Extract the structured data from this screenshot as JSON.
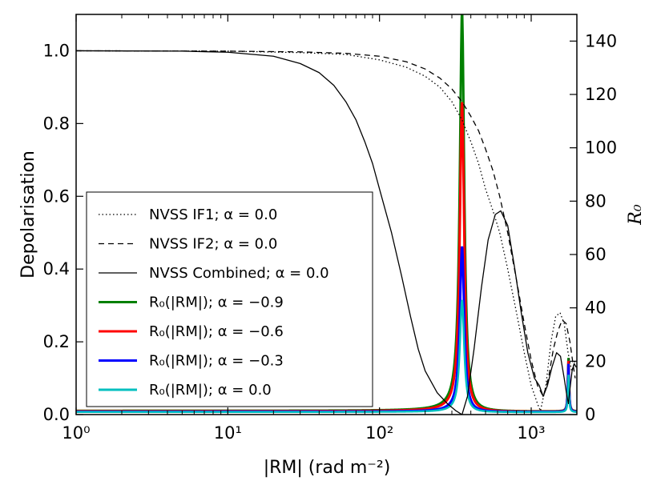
{
  "chart_data": {
    "type": "line",
    "xscale": "log",
    "xlim": [
      1,
      2000
    ],
    "ylim": [
      0,
      1.1
    ],
    "y2lim": [
      0,
      150
    ],
    "xlabel": "|RM| (rad m⁻²)",
    "ylabel": "Depolarisation",
    "y2label": "R₀",
    "x_ticks": [
      "10⁰",
      "10¹",
      "10²",
      "10³"
    ],
    "y_ticks": [
      "0.0",
      "0.2",
      "0.4",
      "0.6",
      "0.8",
      "1.0"
    ],
    "y2_ticks": [
      "0",
      "20",
      "40",
      "60",
      "80",
      "100",
      "120",
      "140"
    ],
    "legend_location": "lower left",
    "grid": false,
    "depolarisation_series": [
      {
        "name": "NVSS IF1; α = 0.0",
        "style": "dotted",
        "color": "#000000",
        "points": [
          [
            1,
            1.0
          ],
          [
            10,
            0.999
          ],
          [
            30,
            0.995
          ],
          [
            60,
            0.99
          ],
          [
            100,
            0.975
          ],
          [
            150,
            0.955
          ],
          [
            200,
            0.93
          ],
          [
            250,
            0.9
          ],
          [
            300,
            0.86
          ],
          [
            350,
            0.81
          ],
          [
            400,
            0.75
          ],
          [
            450,
            0.69
          ],
          [
            500,
            0.62
          ],
          [
            560,
            0.56
          ],
          [
            620,
            0.5
          ],
          [
            700,
            0.4
          ],
          [
            800,
            0.28
          ],
          [
            900,
            0.17
          ],
          [
            1000,
            0.08
          ],
          [
            1100,
            0.03
          ],
          [
            1150,
            0.01
          ],
          [
            1250,
            0.08
          ],
          [
            1350,
            0.2
          ],
          [
            1450,
            0.27
          ],
          [
            1550,
            0.28
          ],
          [
            1650,
            0.25
          ],
          [
            1750,
            0.17
          ],
          [
            1850,
            0.12
          ],
          [
            1950,
            0.15
          ]
        ]
      },
      {
        "name": "NVSS IF2; α = 0.0",
        "style": "dashed",
        "color": "#000000",
        "points": [
          [
            1,
            1.0
          ],
          [
            10,
            0.999
          ],
          [
            30,
            0.997
          ],
          [
            60,
            0.993
          ],
          [
            100,
            0.985
          ],
          [
            150,
            0.97
          ],
          [
            200,
            0.95
          ],
          [
            250,
            0.925
          ],
          [
            300,
            0.895
          ],
          [
            350,
            0.86
          ],
          [
            400,
            0.82
          ],
          [
            450,
            0.78
          ],
          [
            500,
            0.73
          ],
          [
            560,
            0.67
          ],
          [
            620,
            0.6
          ],
          [
            700,
            0.5
          ],
          [
            800,
            0.37
          ],
          [
            900,
            0.25
          ],
          [
            1000,
            0.15
          ],
          [
            1100,
            0.08
          ],
          [
            1200,
            0.05
          ],
          [
            1300,
            0.1
          ],
          [
            1400,
            0.18
          ],
          [
            1500,
            0.23
          ],
          [
            1600,
            0.26
          ],
          [
            1700,
            0.25
          ],
          [
            1800,
            0.2
          ],
          [
            1900,
            0.13
          ],
          [
            1950,
            0.1
          ]
        ]
      },
      {
        "name": "NVSS Combined; α = 0.0",
        "style": "solid",
        "color": "#000000",
        "points": [
          [
            1,
            1.0
          ],
          [
            5,
            0.999
          ],
          [
            10,
            0.996
          ],
          [
            20,
            0.985
          ],
          [
            30,
            0.965
          ],
          [
            40,
            0.94
          ],
          [
            50,
            0.905
          ],
          [
            60,
            0.86
          ],
          [
            70,
            0.81
          ],
          [
            80,
            0.75
          ],
          [
            90,
            0.69
          ],
          [
            100,
            0.62
          ],
          [
            120,
            0.5
          ],
          [
            140,
            0.38
          ],
          [
            160,
            0.27
          ],
          [
            180,
            0.18
          ],
          [
            200,
            0.12
          ],
          [
            240,
            0.06
          ],
          [
            280,
            0.03
          ],
          [
            320,
            0.01
          ],
          [
            350,
            0.0
          ],
          [
            380,
            0.05
          ],
          [
            420,
            0.18
          ],
          [
            470,
            0.35
          ],
          [
            520,
            0.48
          ],
          [
            580,
            0.55
          ],
          [
            630,
            0.56
          ],
          [
            700,
            0.52
          ],
          [
            780,
            0.4
          ],
          [
            860,
            0.28
          ],
          [
            950,
            0.17
          ],
          [
            1050,
            0.1
          ],
          [
            1130,
            0.08
          ],
          [
            1200,
            0.05
          ],
          [
            1280,
            0.08
          ],
          [
            1370,
            0.13
          ],
          [
            1470,
            0.17
          ],
          [
            1560,
            0.16
          ],
          [
            1650,
            0.1
          ],
          [
            1720,
            0.05
          ],
          [
            1760,
            0.03
          ],
          [
            1800,
            0.07
          ],
          [
            1860,
            0.12
          ],
          [
            1920,
            0.14
          ],
          [
            1980,
            0.13
          ]
        ]
      }
    ],
    "r0_series": [
      {
        "name": "R₀(|RM|); α = −0.9",
        "color": "#008000",
        "spike_rm": 350,
        "spike_peak": 150,
        "second_spike_rm": 1760,
        "second_spike_peak": 20,
        "baseline": 1.2
      },
      {
        "name": "R₀(|RM|); α = −0.6",
        "color": "#ff0000",
        "spike_rm": 350,
        "spike_peak": 116,
        "second_spike_rm": 1760,
        "second_spike_peak": 19,
        "baseline": 1.1
      },
      {
        "name": "R₀(|RM|); α = −0.3",
        "color": "#0000ff",
        "spike_rm": 350,
        "spike_peak": 62,
        "second_spike_rm": 1760,
        "second_spike_peak": 18,
        "baseline": 1.0
      },
      {
        "name": "R₀(|RM|); α = 0.0",
        "color": "#00bfbf",
        "spike_rm": 350,
        "spike_peak": 42,
        "second_spike_rm": 1760,
        "second_spike_peak": 14,
        "baseline": 0.9
      }
    ]
  }
}
